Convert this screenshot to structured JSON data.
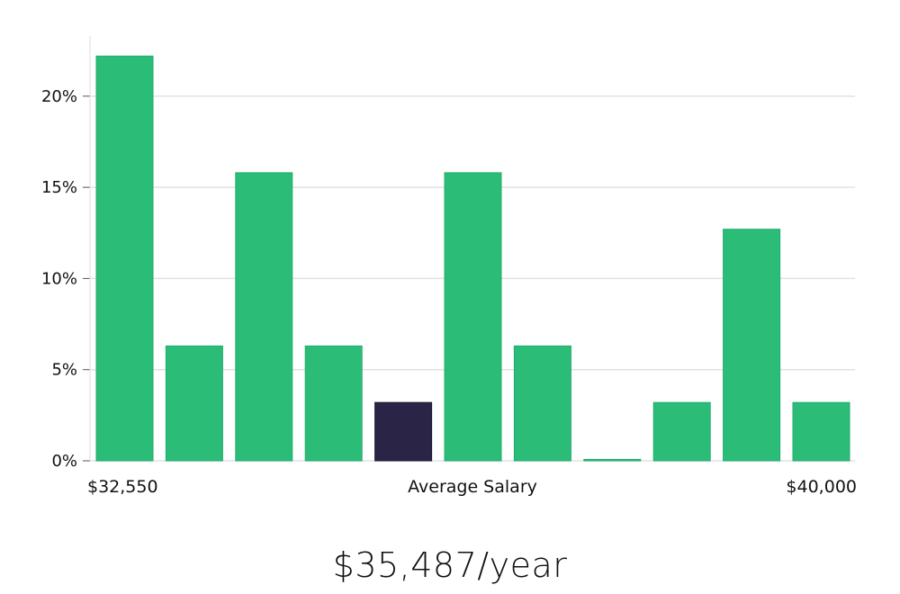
{
  "chart_data": {
    "type": "bar",
    "title": "",
    "xlabel": "",
    "ylabel": "",
    "x_labels": {
      "left": "$32,550",
      "center": "Average Salary",
      "right": "$40,000"
    },
    "categories": [
      "1",
      "2",
      "3",
      "4",
      "5",
      "6",
      "7",
      "8",
      "9",
      "10",
      "11"
    ],
    "values": [
      22.2,
      6.3,
      15.8,
      6.3,
      3.2,
      15.8,
      6.3,
      0,
      3.2,
      12.7,
      3.2
    ],
    "highlight_index": 4,
    "ylim": [
      0,
      23.3
    ],
    "yticks": [
      0,
      5,
      10,
      15,
      20
    ],
    "ytick_labels": [
      "0%",
      "5%",
      "10%",
      "15%",
      "20%"
    ],
    "grid": true,
    "legend": "none",
    "colors": {
      "bar": "#2bbd78",
      "highlight": "#2a2546",
      "grid": "#e2e2e2",
      "axis": "#dddddd"
    }
  },
  "footer": {
    "salary": "$35,487/year"
  }
}
